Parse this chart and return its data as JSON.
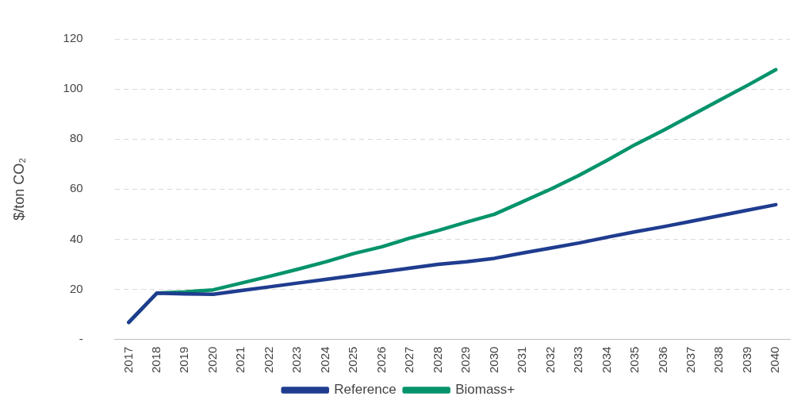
{
  "chart_data": {
    "type": "line",
    "ylabel": "$/ton CO₂",
    "categories": [
      "2017",
      "2018",
      "2019",
      "2020",
      "2021",
      "2022",
      "2023",
      "2024",
      "2025",
      "2026",
      "2027",
      "2028",
      "2029",
      "2030",
      "2031",
      "2032",
      "2033",
      "2034",
      "2035",
      "2036",
      "2037",
      "2038",
      "2039",
      "2040"
    ],
    "series": [
      {
        "name": "Reference",
        "color": "#1f3c8f",
        "values": [
          6.8,
          18.5,
          18.2,
          18,
          19.5,
          21,
          22.5,
          24,
          25.5,
          27,
          28.5,
          30,
          31,
          32.4,
          34.5,
          36.5,
          38.5,
          40.8,
          43,
          45,
          47.2,
          49.4,
          51.6,
          53.8
        ]
      },
      {
        "name": "Biomass+",
        "color": "#05936b",
        "values": [
          6.8,
          18.5,
          19,
          19.8,
          22.5,
          25.2,
          28,
          31,
          34.3,
          37,
          40.5,
          43.5,
          46.8,
          50,
          55,
          60,
          65.5,
          71.5,
          77.8,
          83.5,
          89.5,
          95.5,
          101.5,
          107.7
        ]
      }
    ],
    "ylim": [
      0,
      120
    ],
    "yticks": [
      {
        "value": 0,
        "label": "-"
      },
      20,
      40,
      60,
      80,
      100,
      120
    ],
    "grid": "y",
    "legend": "bottom",
    "marker": "none",
    "line_style": "solid"
  }
}
